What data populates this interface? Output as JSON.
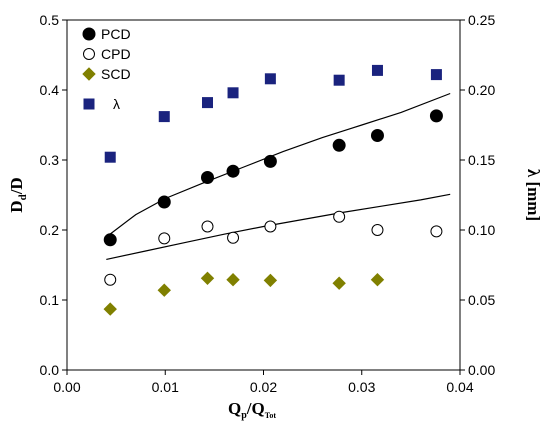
{
  "chart_data": {
    "type": "scatter",
    "x_label": {
      "main": "Q",
      "sub1": "p",
      "mid": "/Q",
      "sub2": "Tot"
    },
    "y_label_left": {
      "main": "D",
      "sub": "d",
      "tail": "/D"
    },
    "y_label_right": "λ [mm]",
    "xlim": [
      0.0,
      0.04
    ],
    "ylim_left": [
      0.0,
      0.5
    ],
    "ylim_right": [
      0.0,
      0.25
    ],
    "x_ticks": [
      "0.00",
      "0.01",
      "0.02",
      "0.03",
      "0.04"
    ],
    "x_tick_values": [
      0.0,
      0.01,
      0.02,
      0.03,
      0.04
    ],
    "y_ticks_left": [
      "0.0",
      "0.1",
      "0.2",
      "0.3",
      "0.4",
      "0.5"
    ],
    "y_tick_values_left": [
      0.0,
      0.1,
      0.2,
      0.3,
      0.4,
      0.5
    ],
    "y_ticks_right": [
      "0.00",
      "0.05",
      "0.10",
      "0.15",
      "0.20",
      "0.25"
    ],
    "y_tick_values_right": [
      0.0,
      0.05,
      0.1,
      0.15,
      0.2,
      0.25
    ],
    "legend_position": "top-left",
    "series": [
      {
        "name": "PCD",
        "marker": "filled-circle",
        "color": "#000000",
        "axis": "left",
        "x": [
          0.0044,
          0.0099,
          0.0143,
          0.0169,
          0.0207,
          0.0277,
          0.0316,
          0.0376
        ],
        "y": [
          0.186,
          0.24,
          0.275,
          0.284,
          0.298,
          0.321,
          0.335,
          0.363
        ]
      },
      {
        "name": "CPD",
        "marker": "open-circle",
        "color": "#000000",
        "axis": "left",
        "x": [
          0.0044,
          0.0099,
          0.0143,
          0.0169,
          0.0207,
          0.0277,
          0.0316,
          0.0376
        ],
        "y": [
          0.129,
          0.188,
          0.205,
          0.189,
          0.205,
          0.219,
          0.2,
          0.198
        ]
      },
      {
        "name": "SCD",
        "marker": "diamond",
        "color": "#808000",
        "axis": "left",
        "x": [
          0.0044,
          0.0099,
          0.0143,
          0.0169,
          0.0207,
          0.0277,
          0.0316
        ],
        "y": [
          0.087,
          0.114,
          0.131,
          0.129,
          0.128,
          0.124,
          0.129
        ]
      },
      {
        "name": "λ",
        "marker": "square",
        "color": "#1a237e",
        "axis": "right",
        "x": [
          0.0044,
          0.0099,
          0.0143,
          0.0169,
          0.0207,
          0.0277,
          0.0316,
          0.0376
        ],
        "y": [
          0.152,
          0.181,
          0.191,
          0.198,
          0.208,
          0.207,
          0.214,
          0.211
        ]
      }
    ],
    "trend_lines": [
      {
        "axis": "left",
        "color": "#000000",
        "x": [
          0.004,
          0.007,
          0.01,
          0.014,
          0.018,
          0.022,
          0.026,
          0.03,
          0.034,
          0.039
        ],
        "y": [
          0.19,
          0.222,
          0.245,
          0.268,
          0.29,
          0.312,
          0.332,
          0.35,
          0.368,
          0.395
        ]
      },
      {
        "axis": "left",
        "color": "#000000",
        "x": [
          0.004,
          0.008,
          0.012,
          0.016,
          0.02,
          0.024,
          0.028,
          0.032,
          0.036,
          0.039
        ],
        "y": [
          0.158,
          0.17,
          0.182,
          0.194,
          0.205,
          0.215,
          0.225,
          0.234,
          0.243,
          0.251
        ]
      }
    ]
  }
}
